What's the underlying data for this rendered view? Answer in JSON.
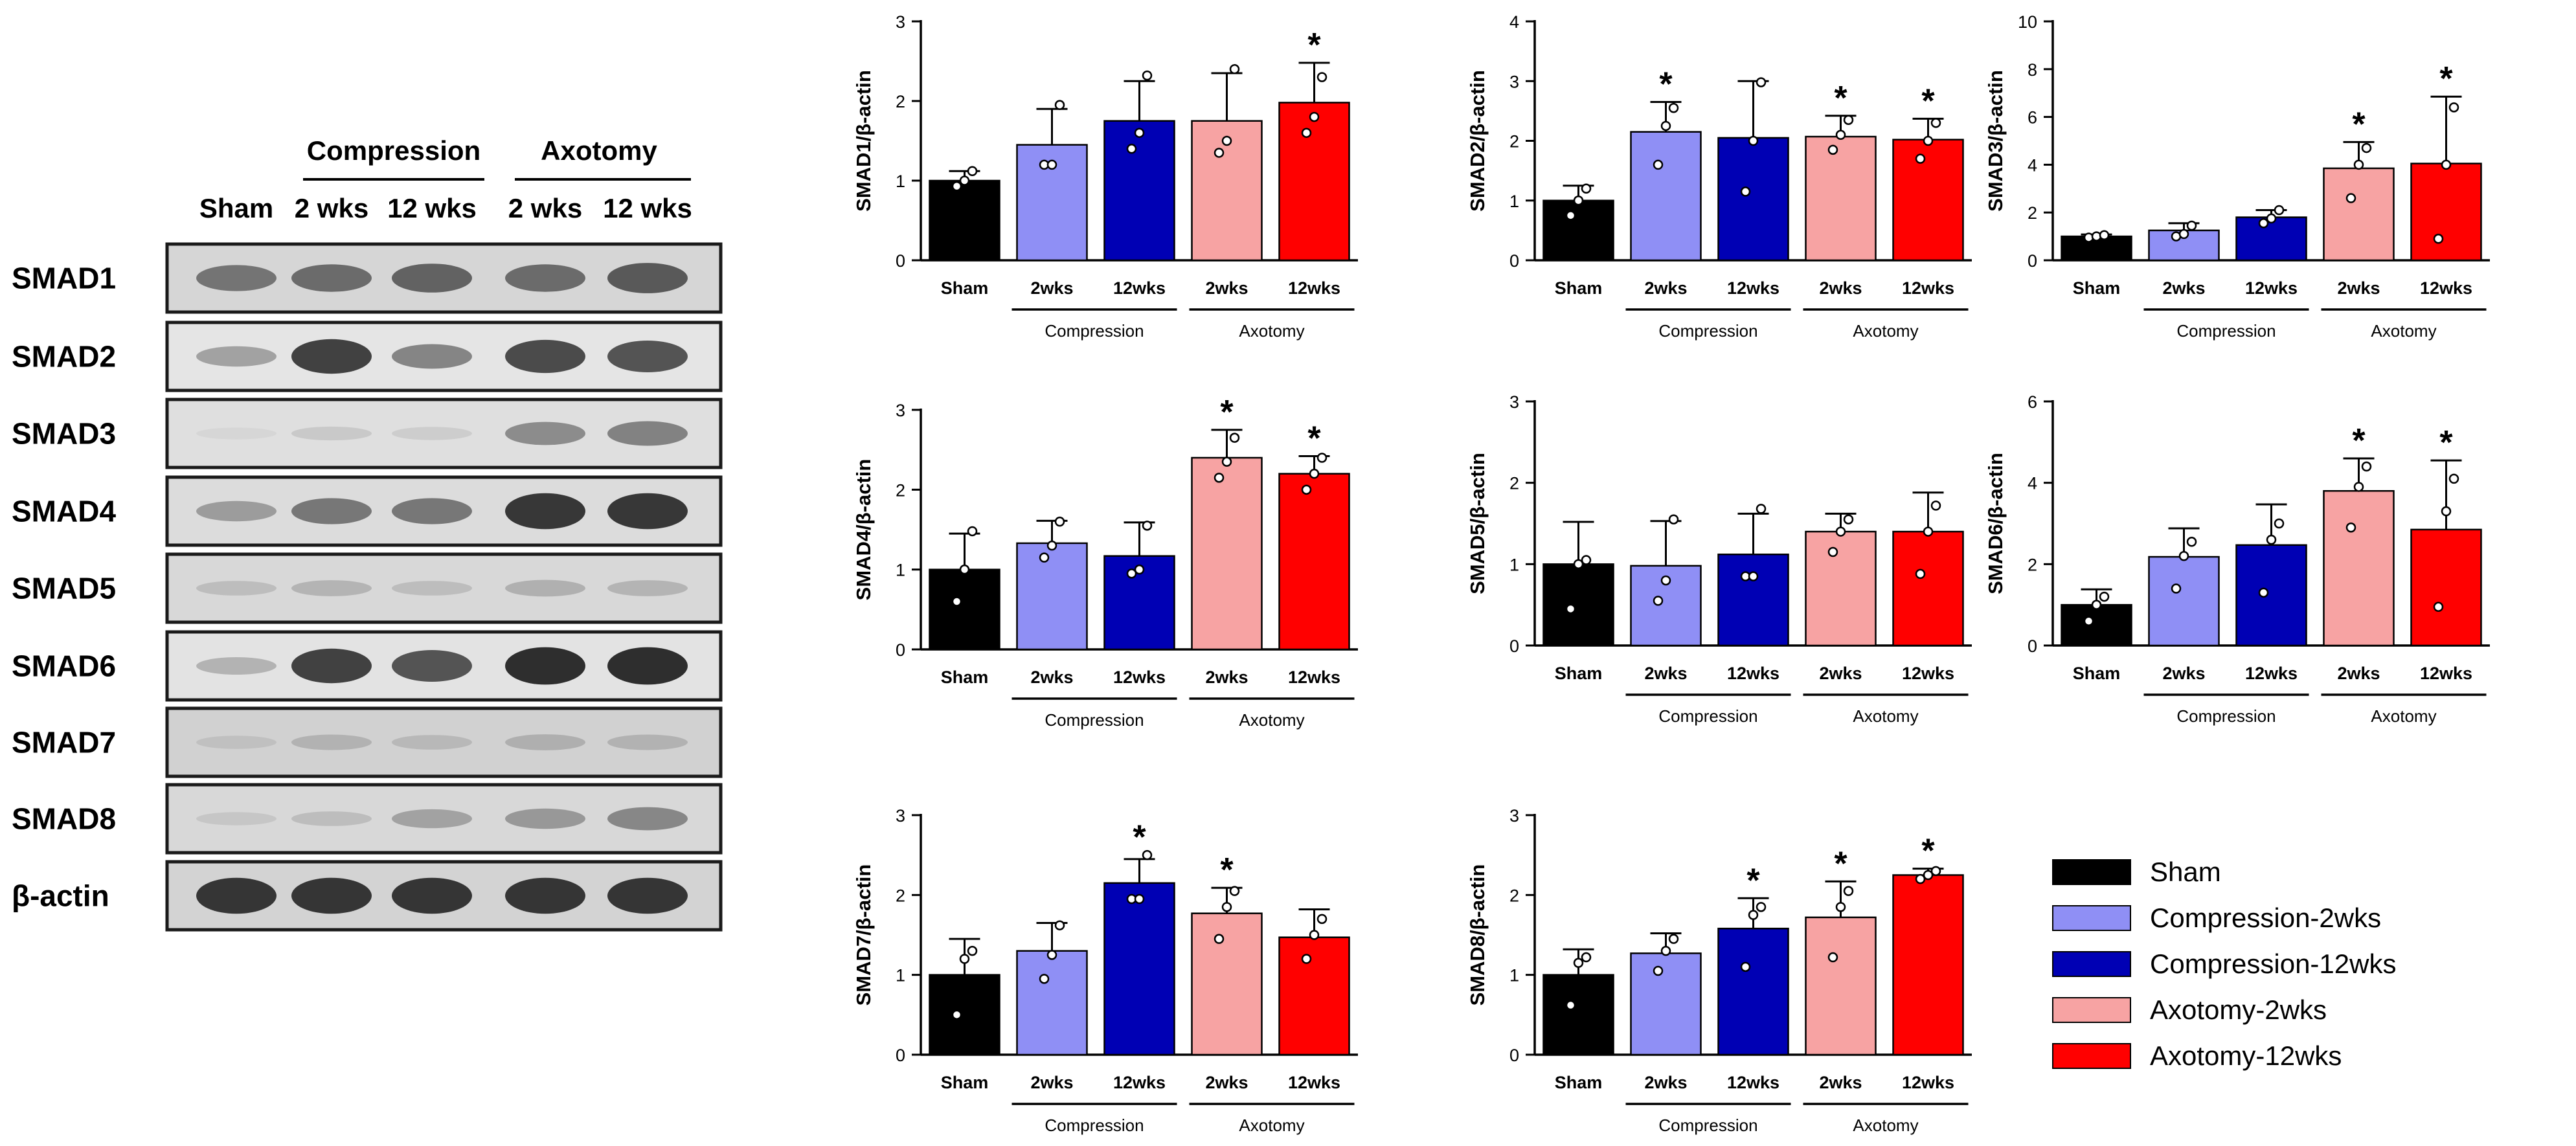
{
  "figure": {
    "groups": [
      {
        "key": "sham",
        "tick": "Sham",
        "legend": "Sham",
        "color": "#000000"
      },
      {
        "key": "c2",
        "tick": "2wks",
        "legend": "Compression-2wks",
        "color": "#8f8ff5"
      },
      {
        "key": "c12",
        "tick": "12wks",
        "legend": "Compression-12wks",
        "color": "#0000b4"
      },
      {
        "key": "a2",
        "tick": "2wks",
        "legend": "Axotomy-2wks",
        "color": "#f7a3a3"
      },
      {
        "key": "a12",
        "tick": "12wks",
        "legend": "Axotomy-12wks",
        "color": "#ff0000"
      }
    ],
    "bracket_labels": {
      "compression": "Compression",
      "axotomy": "Axotomy"
    },
    "significance_marker": "*"
  },
  "blot": {
    "header": {
      "compression": "Compression",
      "axotomy": "Axotomy",
      "lanes": [
        "Sham",
        "2 wks",
        "12 wks",
        "2 wks",
        "12 wks"
      ]
    },
    "rows": [
      {
        "label": "SMAD1",
        "intensity": [
          0.55,
          0.6,
          0.65,
          0.6,
          0.7
        ],
        "background": 0.5
      },
      {
        "label": "SMAD2",
        "intensity": [
          0.35,
          0.85,
          0.5,
          0.8,
          0.75
        ],
        "background": 0.15
      },
      {
        "label": "SMAD3",
        "intensity": [
          0.05,
          0.12,
          0.1,
          0.45,
          0.5
        ],
        "background": 0.3
      },
      {
        "label": "SMAD4",
        "intensity": [
          0.35,
          0.55,
          0.55,
          0.9,
          0.9
        ],
        "background": 0.35
      },
      {
        "label": "SMAD5",
        "intensity": [
          0.15,
          0.2,
          0.15,
          0.22,
          0.2
        ],
        "background": 0.45
      },
      {
        "label": "SMAD6",
        "intensity": [
          0.25,
          0.85,
          0.75,
          0.95,
          0.95
        ],
        "background": 0.2
      },
      {
        "label": "SMAD7",
        "intensity": [
          0.1,
          0.18,
          0.15,
          0.2,
          0.18
        ],
        "background": 0.6
      },
      {
        "label": "SMAD8",
        "intensity": [
          0.1,
          0.15,
          0.3,
          0.35,
          0.45
        ],
        "background": 0.45
      },
      {
        "label": "β-actin",
        "intensity": [
          0.9,
          0.9,
          0.9,
          0.9,
          0.9
        ],
        "background": 0.55
      }
    ]
  },
  "chart_data": [
    {
      "type": "bar",
      "title": "",
      "ylabel": "SMAD1/β-actin",
      "ylim": [
        0,
        3
      ],
      "yticks": [
        0,
        1,
        2,
        3
      ],
      "categories": [
        "Sham",
        "2wks",
        "12wks",
        "2wks",
        "12wks"
      ],
      "values": [
        1.0,
        1.45,
        1.75,
        1.75,
        1.98
      ],
      "errors": [
        0.12,
        0.45,
        0.5,
        0.6,
        0.5
      ],
      "points": [
        [
          0.93,
          1.0,
          1.12
        ],
        [
          1.2,
          1.2,
          1.95
        ],
        [
          1.4,
          1.6,
          2.32
        ],
        [
          1.35,
          1.5,
          2.4
        ],
        [
          1.6,
          1.8,
          2.3
        ]
      ],
      "significant": [
        false,
        false,
        false,
        false,
        true
      ]
    },
    {
      "type": "bar",
      "title": "",
      "ylabel": "SMAD2/β-actin",
      "ylim": [
        0,
        4
      ],
      "yticks": [
        0,
        1,
        2,
        3,
        4
      ],
      "categories": [
        "Sham",
        "2wks",
        "12wks",
        "2wks",
        "12wks"
      ],
      "values": [
        1.0,
        2.15,
        2.05,
        2.07,
        2.02
      ],
      "errors": [
        0.25,
        0.5,
        0.95,
        0.35,
        0.35
      ],
      "points": [
        [
          0.75,
          1.0,
          1.2
        ],
        [
          1.6,
          2.25,
          2.55
        ],
        [
          1.15,
          2.0,
          2.98
        ],
        [
          1.85,
          2.1,
          2.35
        ],
        [
          1.7,
          2.0,
          2.3
        ]
      ],
      "significant": [
        false,
        true,
        false,
        true,
        true
      ]
    },
    {
      "type": "bar",
      "title": "",
      "ylabel": "SMAD3/β-actin",
      "ylim": [
        0,
        10
      ],
      "yticks": [
        0,
        2,
        4,
        6,
        8,
        10
      ],
      "categories": [
        "Sham",
        "2wks",
        "12wks",
        "2wks",
        "12wks"
      ],
      "values": [
        1.0,
        1.25,
        1.8,
        3.85,
        4.05
      ],
      "errors": [
        0.08,
        0.3,
        0.3,
        1.1,
        2.8
      ],
      "points": [
        [
          0.95,
          1.0,
          1.05
        ],
        [
          1.0,
          1.1,
          1.45
        ],
        [
          1.55,
          1.75,
          2.1
        ],
        [
          2.6,
          4.0,
          4.7
        ],
        [
          0.9,
          4.0,
          6.4
        ]
      ],
      "significant": [
        false,
        false,
        false,
        true,
        true
      ]
    },
    {
      "type": "bar",
      "title": "",
      "ylabel": "SMAD4/β-actin",
      "ylim": [
        0,
        3
      ],
      "yticks": [
        0,
        1,
        2,
        3
      ],
      "categories": [
        "Sham",
        "2wks",
        "12wks",
        "2wks",
        "12wks"
      ],
      "values": [
        1.0,
        1.33,
        1.17,
        2.4,
        2.2
      ],
      "errors": [
        0.45,
        0.28,
        0.42,
        0.35,
        0.22
      ],
      "points": [
        [
          0.6,
          1.0,
          1.48
        ],
        [
          1.15,
          1.3,
          1.6
        ],
        [
          0.95,
          1.0,
          1.55
        ],
        [
          2.15,
          2.35,
          2.65
        ],
        [
          2.0,
          2.2,
          2.4
        ]
      ],
      "significant": [
        false,
        false,
        false,
        true,
        true
      ]
    },
    {
      "type": "bar",
      "title": "",
      "ylabel": "SMAD5/β-actin",
      "ylim": [
        0,
        3
      ],
      "yticks": [
        0,
        1,
        2,
        3
      ],
      "categories": [
        "Sham",
        "2wks",
        "12wks",
        "2wks",
        "12wks"
      ],
      "values": [
        1.0,
        0.98,
        1.12,
        1.4,
        1.4
      ],
      "errors": [
        0.52,
        0.55,
        0.5,
        0.22,
        0.48
      ],
      "points": [
        [
          0.45,
          1.0,
          1.05
        ],
        [
          0.55,
          0.8,
          1.55
        ],
        [
          0.85,
          0.85,
          1.68
        ],
        [
          1.15,
          1.4,
          1.55
        ],
        [
          0.88,
          1.4,
          1.72
        ]
      ],
      "significant": [
        false,
        false,
        false,
        false,
        false
      ]
    },
    {
      "type": "bar",
      "title": "",
      "ylabel": "SMAD6/β-actin",
      "ylim": [
        0,
        6
      ],
      "yticks": [
        0,
        2,
        4,
        6
      ],
      "categories": [
        "Sham",
        "2wks",
        "12wks",
        "2wks",
        "12wks"
      ],
      "values": [
        1.0,
        2.18,
        2.47,
        3.8,
        2.85
      ],
      "errors": [
        0.38,
        0.7,
        1.0,
        0.8,
        1.7
      ],
      "points": [
        [
          0.6,
          1.0,
          1.2
        ],
        [
          1.4,
          2.2,
          2.55
        ],
        [
          1.3,
          2.6,
          3.0
        ],
        [
          2.9,
          3.9,
          4.4
        ],
        [
          0.95,
          3.3,
          4.1
        ]
      ],
      "significant": [
        false,
        false,
        false,
        true,
        true
      ]
    },
    {
      "type": "bar",
      "title": "",
      "ylabel": "SMAD7/β-actin",
      "ylim": [
        0,
        3
      ],
      "yticks": [
        0,
        1,
        2,
        3
      ],
      "categories": [
        "Sham",
        "2wks",
        "12wks",
        "2wks",
        "12wks"
      ],
      "values": [
        1.0,
        1.3,
        2.15,
        1.77,
        1.47
      ],
      "errors": [
        0.45,
        0.35,
        0.3,
        0.32,
        0.35
      ],
      "points": [
        [
          0.5,
          1.2,
          1.3
        ],
        [
          0.95,
          1.25,
          1.62
        ],
        [
          1.95,
          1.95,
          2.5
        ],
        [
          1.45,
          1.85,
          2.05
        ],
        [
          1.2,
          1.5,
          1.7
        ]
      ],
      "significant": [
        false,
        false,
        true,
        true,
        false
      ]
    },
    {
      "type": "bar",
      "title": "",
      "ylabel": "SMAD8/β-actin",
      "ylim": [
        0,
        3
      ],
      "yticks": [
        0,
        1,
        2,
        3
      ],
      "categories": [
        "Sham",
        "2wks",
        "12wks",
        "2wks",
        "12wks"
      ],
      "values": [
        1.0,
        1.27,
        1.58,
        1.72,
        2.25
      ],
      "errors": [
        0.32,
        0.25,
        0.38,
        0.45,
        0.08
      ],
      "points": [
        [
          0.62,
          1.15,
          1.22
        ],
        [
          1.05,
          1.3,
          1.45
        ],
        [
          1.1,
          1.75,
          1.85
        ],
        [
          1.22,
          1.85,
          2.05
        ],
        [
          2.2,
          2.25,
          2.3
        ]
      ],
      "significant": [
        false,
        false,
        true,
        true,
        true
      ]
    }
  ]
}
